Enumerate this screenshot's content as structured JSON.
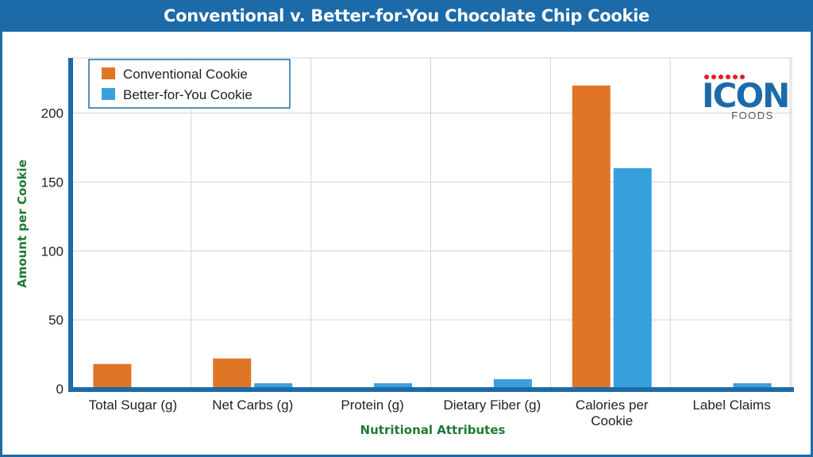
{
  "chart_data": {
    "type": "bar",
    "title": "Conventional v. Better-for-You Chocolate Chip Cookie",
    "xlabel": "Nutritional Attributes",
    "ylabel": "Amount per Cookie",
    "ylim": [
      0,
      240
    ],
    "yticks": [
      0,
      50,
      100,
      150,
      200
    ],
    "grid": true,
    "legend_position": "top-left",
    "categories": [
      [
        "Total Sugar (g)"
      ],
      [
        "Net Carbs (g)"
      ],
      [
        "Protein (g)"
      ],
      [
        "Dietary Fiber (g)"
      ],
      [
        "Calories per",
        "Cookie"
      ],
      [
        "Label Claims"
      ]
    ],
    "series": [
      {
        "name": "Conventional Cookie",
        "color": "#e07526",
        "values": [
          18,
          22,
          0,
          0,
          220,
          0
        ]
      },
      {
        "name": "Better-for-You Cookie",
        "color": "#37a0dc",
        "values": [
          0,
          4,
          4,
          7,
          160,
          4
        ]
      }
    ]
  },
  "logo": {
    "brand": "ICON",
    "sub": "FOODS",
    "dot_color": "#e0202e",
    "brand_color": "#1d6aa8"
  }
}
